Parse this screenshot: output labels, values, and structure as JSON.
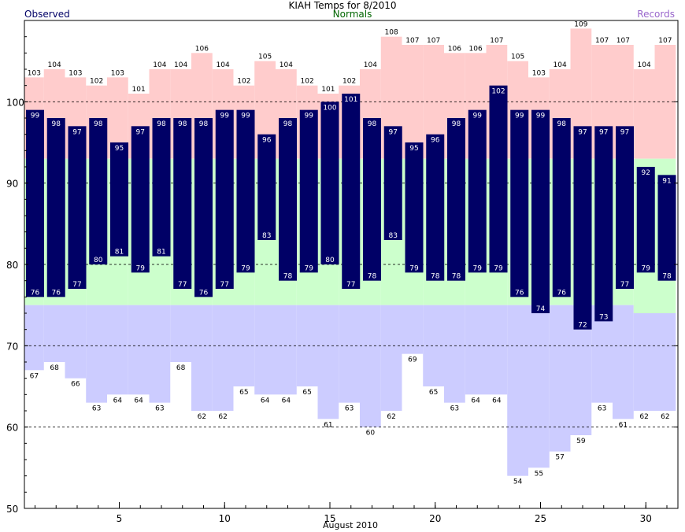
{
  "chart_data": {
    "type": "bar",
    "title": "KIAH Temps for 8/2010",
    "legend": {
      "observed": "Observed",
      "normals": "Normals",
      "records": "Records"
    },
    "xlabel": "August 2010",
    "x_ticks": [
      "5",
      "10",
      "15",
      "20",
      "25",
      "30"
    ],
    "y_ticks": [
      "50",
      "60",
      "70",
      "80",
      "90",
      "100"
    ],
    "ylim": [
      50,
      110
    ],
    "grid": "dashed horizontal lines at 60, 70, 80, 90, 100",
    "days": [
      1,
      2,
      3,
      4,
      5,
      6,
      7,
      8,
      9,
      10,
      11,
      12,
      13,
      14,
      15,
      16,
      17,
      18,
      19,
      20,
      21,
      22,
      23,
      24,
      25,
      26,
      27,
      28,
      29,
      30,
      31
    ],
    "series": [
      {
        "name": "Observed",
        "key": "obs_high",
        "values": [
          99,
          98,
          97,
          98,
          95,
          97,
          98,
          98,
          98,
          99,
          99,
          96,
          98,
          99,
          100,
          101,
          98,
          97,
          95,
          96,
          98,
          99,
          102,
          99,
          99,
          98,
          97,
          97,
          97,
          92,
          91
        ]
      },
      {
        "name": "Observed",
        "key": "obs_low",
        "values": [
          76,
          76,
          77,
          80,
          81,
          79,
          81,
          77,
          76,
          77,
          79,
          83,
          78,
          79,
          80,
          77,
          78,
          83,
          79,
          78,
          78,
          79,
          79,
          76,
          74,
          76,
          72,
          73,
          77,
          79,
          78
        ]
      },
      {
        "name": "Records",
        "key": "record_high",
        "values": [
          103,
          104,
          103,
          102,
          103,
          101,
          104,
          104,
          106,
          104,
          102,
          105,
          104,
          102,
          101,
          102,
          104,
          108,
          107,
          107,
          106,
          106,
          107,
          105,
          103,
          104,
          109,
          107,
          107,
          104,
          107
        ]
      },
      {
        "name": "Records",
        "key": "record_low",
        "values": [
          67,
          68,
          66,
          63,
          64,
          64,
          63,
          68,
          62,
          62,
          65,
          64,
          64,
          65,
          61,
          63,
          60,
          62,
          69,
          65,
          63,
          64,
          64,
          54,
          55,
          57,
          59,
          63,
          61,
          62,
          62
        ]
      },
      {
        "name": "Normals",
        "key": "normal_high",
        "values": [
          93,
          93,
          93,
          93,
          93,
          93,
          93,
          93,
          93,
          93,
          93,
          93,
          93,
          93,
          93,
          93,
          93,
          93,
          93,
          93,
          93,
          93,
          93,
          93,
          93,
          93,
          93,
          93,
          93,
          93,
          93
        ]
      },
      {
        "name": "Normals",
        "key": "normal_low",
        "values": [
          75,
          75,
          75,
          75,
          75,
          75,
          75,
          75,
          75,
          75,
          75,
          75,
          75,
          75,
          75,
          75,
          75,
          75,
          75,
          75,
          75,
          75,
          75,
          75,
          75,
          75,
          75,
          75,
          75,
          74,
          74
        ]
      }
    ],
    "colors": {
      "observed": "#000066",
      "record_high": "#ffcccc",
      "normal_band": "#ccffcc",
      "record_low": "#ccccff",
      "grid": "#000000",
      "label_text": "#ffffff"
    }
  }
}
